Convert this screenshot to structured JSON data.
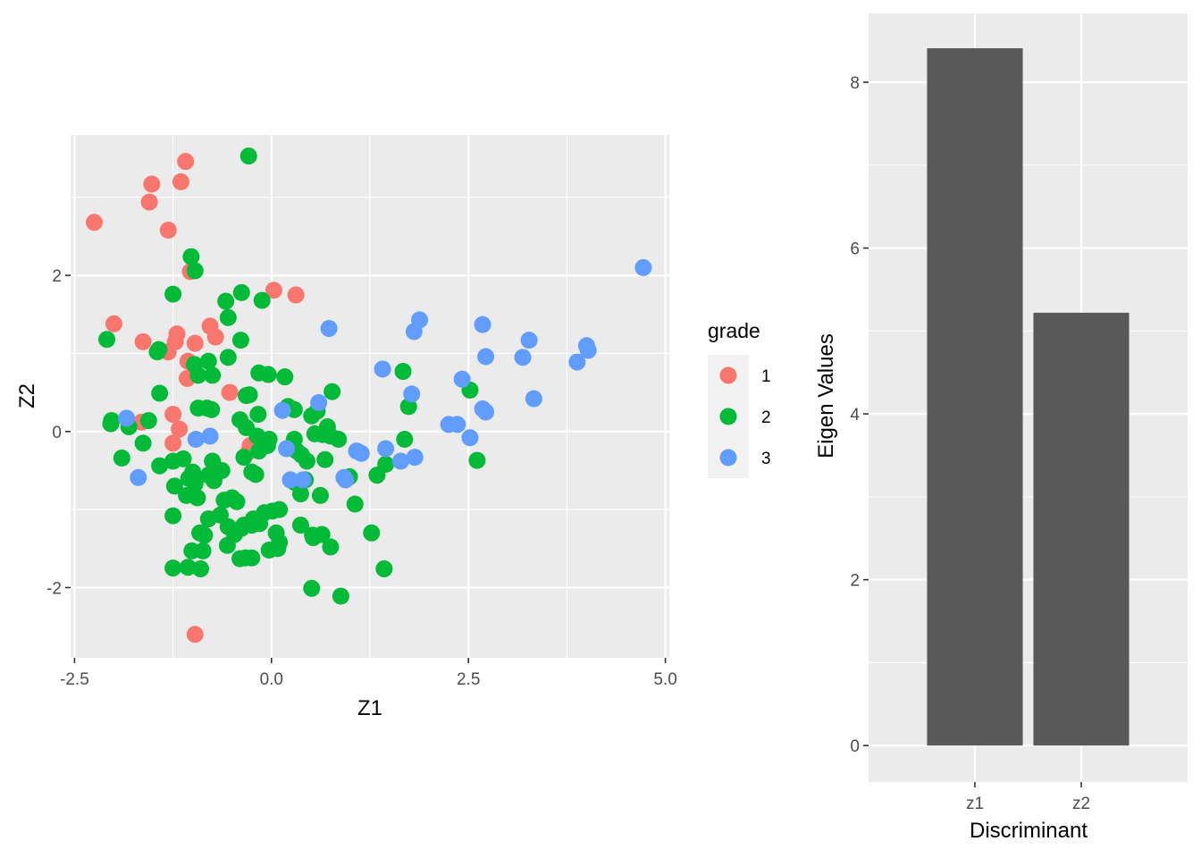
{
  "chart_data": [
    {
      "type": "scatter",
      "xlabel": "Z1",
      "ylabel": "Z2",
      "xlim": [
        -2.55,
        5.05
      ],
      "ylim": [
        -2.9,
        3.8
      ],
      "x_ticks": [
        "-2.5",
        "0.0",
        "2.5",
        "5.0"
      ],
      "y_ticks": [
        "-2",
        "0",
        "2"
      ],
      "x_tick_values": [
        -2.5,
        0.0,
        2.5,
        5.0
      ],
      "y_tick_values": [
        -2,
        0,
        2
      ],
      "legend": {
        "title": "grade",
        "position": "right"
      },
      "grid": true,
      "series": [
        {
          "name": "1",
          "color": "#F8766D",
          "points": [
            [
              -2.25,
              2.68
            ],
            [
              -1.52,
              3.17
            ],
            [
              -1.55,
              2.94
            ],
            [
              -1.15,
              3.2
            ],
            [
              -1.09,
              3.46
            ],
            [
              -1.31,
              2.58
            ],
            [
              -1.03,
              2.05
            ],
            [
              0.03,
              1.81
            ],
            [
              0.31,
              1.75
            ],
            [
              -2.0,
              1.38
            ],
            [
              -1.63,
              1.15
            ],
            [
              -1.2,
              1.25
            ],
            [
              -1.22,
              1.15
            ],
            [
              -0.97,
              1.13
            ],
            [
              -1.31,
              1.02
            ],
            [
              -0.78,
              1.35
            ],
            [
              -0.71,
              1.21
            ],
            [
              -1.06,
              0.9
            ],
            [
              -1.07,
              0.68
            ],
            [
              -0.53,
              0.5
            ],
            [
              -1.25,
              0.22
            ],
            [
              -1.17,
              0.03
            ],
            [
              -1.25,
              -0.15
            ],
            [
              -1.65,
              0.12
            ],
            [
              -0.27,
              -0.18
            ],
            [
              -0.29,
              -0.26
            ],
            [
              -0.15,
              -0.18
            ],
            [
              -0.97,
              -2.6
            ]
          ]
        },
        {
          "name": "2",
          "color": "#00BA38",
          "points": [
            [
              -0.29,
              3.53
            ],
            [
              -1.02,
              2.24
            ],
            [
              -0.97,
              2.06
            ],
            [
              -1.25,
              1.76
            ],
            [
              -0.58,
              1.67
            ],
            [
              -0.38,
              1.78
            ],
            [
              -0.12,
              1.68
            ],
            [
              -0.55,
              1.46
            ],
            [
              -2.09,
              1.18
            ],
            [
              -1.43,
              1.05
            ],
            [
              -1.45,
              1.02
            ],
            [
              -0.39,
              1.17
            ],
            [
              -0.55,
              0.95
            ],
            [
              -0.8,
              0.9
            ],
            [
              -0.16,
              0.75
            ],
            [
              -0.04,
              0.73
            ],
            [
              0.17,
              0.7
            ],
            [
              -0.75,
              0.72
            ],
            [
              -0.93,
              0.72
            ],
            [
              -0.98,
              0.86
            ],
            [
              -1.42,
              0.49
            ],
            [
              -0.28,
              0.47
            ],
            [
              -0.32,
              0.46
            ],
            [
              0.77,
              0.51
            ],
            [
              1.67,
              0.77
            ],
            [
              2.52,
              0.53
            ],
            [
              1.74,
              0.32
            ],
            [
              -0.93,
              0.3
            ],
            [
              -0.82,
              0.3
            ],
            [
              -0.76,
              0.28
            ],
            [
              -0.17,
              0.22
            ],
            [
              0.21,
              0.32
            ],
            [
              0.29,
              0.28
            ],
            [
              0.51,
              0.2
            ],
            [
              0.58,
              0.26
            ],
            [
              0.71,
              0.06
            ],
            [
              -2.03,
              0.14
            ],
            [
              -2.04,
              0.1
            ],
            [
              -1.81,
              0.06
            ],
            [
              -1.56,
              0.14
            ],
            [
              -0.4,
              0.15
            ],
            [
              -0.32,
              0.05
            ],
            [
              -0.18,
              -0.06
            ],
            [
              -0.03,
              -0.1
            ],
            [
              0.29,
              -0.1
            ],
            [
              0.55,
              -0.03
            ],
            [
              0.65,
              -0.04
            ],
            [
              0.75,
              -0.06
            ],
            [
              0.85,
              -0.1
            ],
            [
              1.69,
              -0.1
            ],
            [
              -1.9,
              -0.34
            ],
            [
              -1.63,
              -0.15
            ],
            [
              -1.42,
              -0.44
            ],
            [
              -1.25,
              -0.38
            ],
            [
              -1.12,
              -0.35
            ],
            [
              -0.35,
              -0.33
            ],
            [
              -0.16,
              -0.25
            ],
            [
              -0.05,
              -0.18
            ],
            [
              0.32,
              -0.25
            ],
            [
              0.38,
              -0.3
            ],
            [
              0.45,
              -0.38
            ],
            [
              0.68,
              -0.36
            ],
            [
              2.61,
              -0.37
            ],
            [
              -1.23,
              -0.7
            ],
            [
              -1.05,
              -0.6
            ],
            [
              -1.0,
              -0.52
            ],
            [
              -0.97,
              -0.67
            ],
            [
              -0.8,
              -0.56
            ],
            [
              -0.75,
              -0.38
            ],
            [
              -0.7,
              -0.48
            ],
            [
              -0.63,
              -0.5
            ],
            [
              -0.25,
              -0.52
            ],
            [
              -0.2,
              -0.55
            ],
            [
              -1.08,
              -0.82
            ],
            [
              -0.94,
              -0.85
            ],
            [
              -0.73,
              -0.63
            ],
            [
              0.29,
              -0.65
            ],
            [
              0.43,
              -0.62
            ],
            [
              0.37,
              -0.8
            ],
            [
              0.62,
              -0.82
            ],
            [
              0.99,
              -0.58
            ],
            [
              1.06,
              -0.93
            ],
            [
              1.34,
              -0.56
            ],
            [
              1.45,
              -0.42
            ],
            [
              -1.25,
              -1.08
            ],
            [
              -0.8,
              -1.12
            ],
            [
              -0.65,
              -1.07
            ],
            [
              -0.6,
              -0.88
            ],
            [
              -0.5,
              -0.85
            ],
            [
              -0.44,
              -0.9
            ],
            [
              -0.35,
              -1.2
            ],
            [
              -0.23,
              -1.12
            ],
            [
              -0.15,
              -1.18
            ],
            [
              -0.09,
              -1.04
            ],
            [
              0.01,
              -1.02
            ],
            [
              0.1,
              -1.0
            ],
            [
              -0.91,
              -1.3
            ],
            [
              -0.85,
              -1.33
            ],
            [
              -0.55,
              -1.22
            ],
            [
              -0.47,
              -1.32
            ],
            [
              -0.38,
              -1.24
            ],
            [
              -0.25,
              -1.2
            ],
            [
              0.06,
              -1.3
            ],
            [
              0.1,
              -1.42
            ],
            [
              0.37,
              -1.2
            ],
            [
              0.52,
              -1.33
            ],
            [
              0.53,
              -1.36
            ],
            [
              0.64,
              -1.32
            ],
            [
              -1.01,
              -1.53
            ],
            [
              -0.87,
              -1.53
            ],
            [
              -0.56,
              -1.46
            ],
            [
              -0.4,
              -1.63
            ],
            [
              -0.33,
              -1.62
            ],
            [
              -0.25,
              -1.62
            ],
            [
              -0.03,
              -1.52
            ],
            [
              0.08,
              -1.5
            ],
            [
              0.75,
              -1.48
            ],
            [
              1.27,
              -1.3
            ],
            [
              -1.25,
              -1.75
            ],
            [
              -1.06,
              -1.74
            ],
            [
              -0.9,
              -1.76
            ],
            [
              1.43,
              -1.76
            ],
            [
              0.51,
              -2.01
            ],
            [
              0.88,
              -2.11
            ]
          ]
        },
        {
          "name": "3",
          "color": "#619CFF",
          "points": [
            [
              4.72,
              2.1
            ],
            [
              0.73,
              1.32
            ],
            [
              1.88,
              1.43
            ],
            [
              1.81,
              1.28
            ],
            [
              2.68,
              1.37
            ],
            [
              3.27,
              1.17
            ],
            [
              2.72,
              0.96
            ],
            [
              3.19,
              0.95
            ],
            [
              4.0,
              1.1
            ],
            [
              4.02,
              1.04
            ],
            [
              3.88,
              0.89
            ],
            [
              1.41,
              0.8
            ],
            [
              2.42,
              0.67
            ],
            [
              1.78,
              0.48
            ],
            [
              0.6,
              0.37
            ],
            [
              3.33,
              0.42
            ],
            [
              2.68,
              0.29
            ],
            [
              2.72,
              0.25
            ],
            [
              0.14,
              0.27
            ],
            [
              2.25,
              0.09
            ],
            [
              2.36,
              0.09
            ],
            [
              2.52,
              -0.08
            ],
            [
              -1.84,
              0.17
            ],
            [
              -0.96,
              -0.1
            ],
            [
              -0.78,
              -0.06
            ],
            [
              0.19,
              -0.22
            ],
            [
              1.08,
              -0.25
            ],
            [
              1.14,
              -0.28
            ],
            [
              1.45,
              -0.22
            ],
            [
              1.64,
              -0.38
            ],
            [
              1.82,
              -0.33
            ],
            [
              -1.69,
              -0.59
            ],
            [
              0.24,
              -0.62
            ],
            [
              0.4,
              -0.62
            ],
            [
              0.92,
              -0.59
            ],
            [
              0.94,
              -0.62
            ]
          ]
        }
      ]
    },
    {
      "type": "bar",
      "xlabel": "Discriminant",
      "ylabel": "Eigen Values",
      "categories": [
        "z1",
        "z2"
      ],
      "values": [
        8.41,
        5.22
      ],
      "ylim": [
        -0.44,
        8.83
      ],
      "y_ticks": [
        "0",
        "2",
        "4",
        "6",
        "8"
      ],
      "y_tick_values": [
        0,
        2,
        4,
        6,
        8
      ],
      "bar_color": "#595959",
      "grid": true
    }
  ]
}
